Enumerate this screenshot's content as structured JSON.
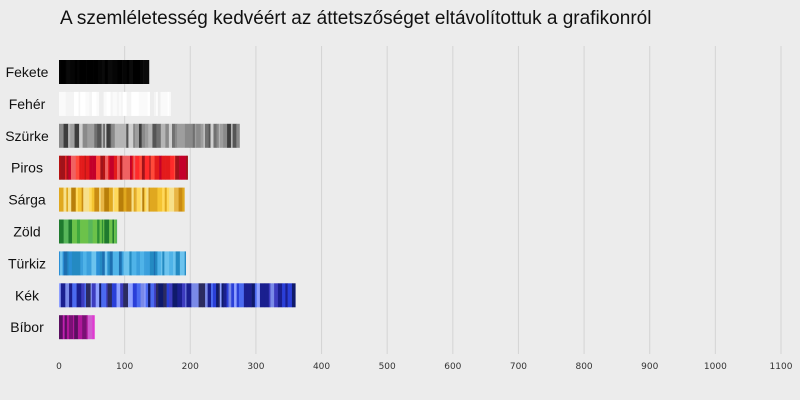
{
  "chart_data": {
    "type": "bar",
    "orientation": "horizontal",
    "title": "A szemléletesség kedvéért az áttetszőséget eltávolítottuk a grafikonról",
    "xlabel": "",
    "ylabel": "",
    "xlim": [
      0,
      1100
    ],
    "xticks": [
      0,
      100,
      200,
      300,
      400,
      500,
      600,
      700,
      800,
      900,
      1000,
      1100
    ],
    "grid": true,
    "legend": "none",
    "categories": [
      "Fekete",
      "Fehér",
      "Szürke",
      "Piros",
      "Sárga",
      "Zöld",
      "Türkiz",
      "Kék",
      "Bíbor"
    ],
    "values": [
      137,
      170,
      275,
      196,
      191,
      88,
      193,
      360,
      54
    ],
    "colors": [
      [
        "#000000",
        "#0a0a0a",
        "#050505"
      ],
      [
        "#ffffff",
        "#f4f4f4",
        "#fafafa",
        "#ededed"
      ],
      [
        "#555555",
        "#8a8a8a",
        "#b5b5b5",
        "#3d3d3d",
        "#9e9e9e",
        "#707070",
        "#cfcfcf"
      ],
      [
        "#e31b1b",
        "#b51212",
        "#ff4a3a",
        "#c4002a",
        "#f06262",
        "#a0131a",
        "#ff2a2a"
      ],
      [
        "#f5c431",
        "#e0a81f",
        "#ffd95a",
        "#c98b12",
        "#f7e08a",
        "#e8b545",
        "#b87e0a"
      ],
      [
        "#3fa83d",
        "#2d8f35",
        "#6cc24a",
        "#1f7a2e",
        "#58b65a",
        "#86c96b"
      ],
      [
        "#2a8fd6",
        "#4fb3e8",
        "#1d6fb0",
        "#6cc3ee",
        "#3a9fdc",
        "#248ac2"
      ],
      [
        "#2a3fd8",
        "#1a1f8f",
        "#4b6af0",
        "#7a8ae8",
        "#0f1a6b",
        "#3c3cbf",
        "#8fa0ff",
        "#2b2b5f"
      ],
      [
        "#b0179a",
        "#e03ad0",
        "#7a1175",
        "#d05ccf",
        "#5a0f60",
        "#c21fb0"
      ]
    ]
  }
}
